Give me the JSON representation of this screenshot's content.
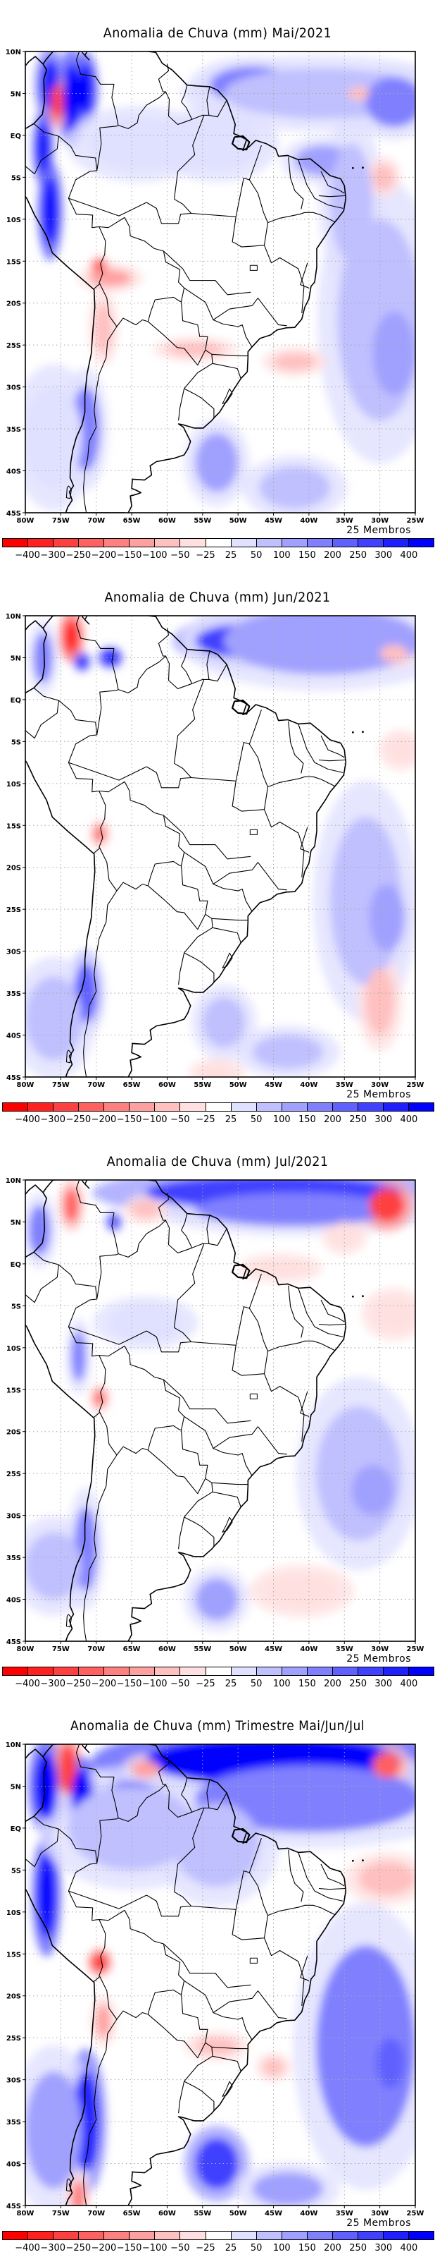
{
  "document": {
    "type": "precipitation-anomaly-maps",
    "region": "South America"
  },
  "axes": {
    "lat_labels": [
      "10N",
      "5N",
      "EQ",
      "5S",
      "10S",
      "15S",
      "20S",
      "25S",
      "30S",
      "35S",
      "40S",
      "45S"
    ],
    "lat_values": [
      10,
      5,
      0,
      -5,
      -10,
      -15,
      -20,
      -25,
      -30,
      -35,
      -40,
      -45
    ],
    "lon_labels": [
      "80W",
      "75W",
      "70W",
      "65W",
      "60W",
      "55W",
      "50W",
      "45W",
      "40W",
      "35W",
      "30W",
      "25W"
    ],
    "lon_values": [
      -80,
      -75,
      -70,
      -65,
      -60,
      -55,
      -50,
      -45,
      -40,
      -35,
      -30,
      -25
    ],
    "lat_range": [
      -45,
      10
    ],
    "lon_range": [
      -80,
      -25
    ]
  },
  "colorbar": {
    "labels": [
      "-400",
      "-300",
      "-250",
      "-200",
      "-150",
      "-100",
      "-50",
      "-25",
      "25",
      "50",
      "100",
      "150",
      "200",
      "250",
      "300",
      "400"
    ],
    "colors": [
      "#ff0000",
      "#ff2020",
      "#ff4040",
      "#ff6060",
      "#ff8080",
      "#ffa0a0",
      "#ffc0c0",
      "#ffe0e0",
      "#ffffff",
      "#e0e0ff",
      "#c0c0ff",
      "#a0a0ff",
      "#8080ff",
      "#6060ff",
      "#4040ff",
      "#2020ff",
      "#0000ff"
    ],
    "unit": "mm"
  },
  "panels": [
    {
      "title": "Anomalia de Chuva (mm) Mai/2021",
      "members_label": "25 Membros",
      "anomaly_features": [
        {
          "lon": -73.5,
          "lat": 4.5,
          "rx": 1.2,
          "ry": 4,
          "cls": 16
        },
        {
          "lon": -76.5,
          "lat": 6,
          "rx": 1.3,
          "ry": 3,
          "cls": 15
        },
        {
          "lon": -75.5,
          "lat": 4,
          "rx": 0.9,
          "ry": 2,
          "cls": 2
        },
        {
          "lon": -71.5,
          "lat": 5.5,
          "rx": 1,
          "ry": 3,
          "cls": 16
        },
        {
          "lon": -77.5,
          "lat": -1.5,
          "rx": 0.8,
          "ry": 3,
          "cls": 16
        },
        {
          "lon": -76.5,
          "lat": -9,
          "rx": 1,
          "ry": 4,
          "cls": 16
        },
        {
          "lon": -69.5,
          "lat": -16,
          "rx": 0.8,
          "ry": 0.8,
          "cls": 1
        },
        {
          "lon": -68,
          "lat": -17,
          "rx": 3,
          "ry": 1,
          "cls": 5
        },
        {
          "lon": -69,
          "lat": -23,
          "rx": 1.2,
          "ry": 3,
          "cls": 6
        },
        {
          "lon": -56,
          "lat": -25.5,
          "rx": 4,
          "ry": 0.8,
          "cls": 6
        },
        {
          "lon": -71.5,
          "lat": -35,
          "rx": 2,
          "ry": 5,
          "cls": 12
        },
        {
          "lon": -76,
          "lat": -36,
          "rx": 4,
          "ry": 6,
          "cls": 9
        },
        {
          "lon": -48,
          "lat": 6,
          "rx": 6,
          "ry": 2.2,
          "cls": 12
        },
        {
          "lon": -38,
          "lat": 5,
          "rx": 14,
          "ry": 3,
          "cls": 10
        },
        {
          "lon": -28,
          "lat": 4,
          "rx": 4,
          "ry": 3,
          "cls": 12
        },
        {
          "lon": -33,
          "lat": 5,
          "rx": 1.5,
          "ry": 0.8,
          "cls": 6
        },
        {
          "lon": -38,
          "lat": -3,
          "rx": 4,
          "ry": 1.8,
          "cls": 11
        },
        {
          "lon": -34,
          "lat": -8,
          "rx": 3,
          "ry": 7,
          "cls": 10
        },
        {
          "lon": -30,
          "lat": -22,
          "rx": 6,
          "ry": 12,
          "cls": 10
        },
        {
          "lon": -28,
          "lat": -26,
          "rx": 3,
          "ry": 5,
          "cls": 11
        },
        {
          "lon": -53,
          "lat": -39,
          "rx": 3,
          "ry": 3.5,
          "cls": 11
        },
        {
          "lon": -42,
          "lat": -42,
          "rx": 5,
          "ry": 2.5,
          "cls": 10
        },
        {
          "lon": -64,
          "lat": -1,
          "rx": 7,
          "ry": 3,
          "cls": 9
        },
        {
          "lon": -53,
          "lat": -1,
          "rx": 6,
          "ry": 3,
          "cls": 9
        },
        {
          "lon": -42,
          "lat": -27,
          "rx": 3,
          "ry": 1,
          "cls": 6
        },
        {
          "lon": -29.5,
          "lat": -5,
          "rx": 1.5,
          "ry": 1.5,
          "cls": 6
        }
      ]
    },
    {
      "title": "Anomalia de Chuva (mm) Jun/2021",
      "members_label": "25 Membros",
      "anomaly_features": [
        {
          "lon": -73.5,
          "lat": 7.5,
          "rx": 1,
          "ry": 2,
          "cls": 1
        },
        {
          "lon": -77.5,
          "lat": 5,
          "rx": 1.3,
          "ry": 3,
          "cls": 12
        },
        {
          "lon": -68,
          "lat": 5,
          "rx": 1,
          "ry": 0.7,
          "cls": 16
        },
        {
          "lon": -72,
          "lat": 4.5,
          "rx": 0.6,
          "ry": 0.6,
          "cls": 16
        },
        {
          "lon": -49,
          "lat": 7,
          "rx": 7,
          "ry": 2,
          "cls": 14
        },
        {
          "lon": -38,
          "lat": 7,
          "rx": 14,
          "ry": 4,
          "cls": 11
        },
        {
          "lon": -28,
          "lat": 5.5,
          "rx": 2,
          "ry": 1,
          "cls": 6
        },
        {
          "lon": -69.5,
          "lat": -16,
          "rx": 0.7,
          "ry": 0.9,
          "cls": 3
        },
        {
          "lon": -71.5,
          "lat": -35,
          "rx": 1.6,
          "ry": 3.5,
          "cls": 13
        },
        {
          "lon": -76,
          "lat": -38,
          "rx": 4,
          "ry": 5,
          "cls": 10
        },
        {
          "lon": -32,
          "lat": -24,
          "rx": 5,
          "ry": 10,
          "cls": 10
        },
        {
          "lon": -29,
          "lat": -26,
          "rx": 2.5,
          "ry": 4,
          "cls": 11
        },
        {
          "lon": -30,
          "lat": -36,
          "rx": 2,
          "ry": 4,
          "cls": 6
        },
        {
          "lon": -52,
          "lat": -38.5,
          "rx": 3,
          "ry": 3,
          "cls": 10
        },
        {
          "lon": -43,
          "lat": -42,
          "rx": 5,
          "ry": 2,
          "cls": 10
        },
        {
          "lon": -27,
          "lat": -6,
          "rx": 2,
          "ry": 1.5,
          "cls": 7
        },
        {
          "lon": -53,
          "lat": -44.5,
          "rx": 2.5,
          "ry": 1,
          "cls": 7
        }
      ]
    },
    {
      "title": "Anomalia de Chuva (mm) Jul/2021",
      "members_label": "25 Membros",
      "anomaly_features": [
        {
          "lon": -45,
          "lat": 8.5,
          "rx": 18,
          "ry": 2,
          "cls": 14
        },
        {
          "lon": -42,
          "lat": 6.5,
          "rx": 14,
          "ry": 2,
          "cls": 12
        },
        {
          "lon": -29,
          "lat": 7,
          "rx": 2.5,
          "ry": 2,
          "cls": 2
        },
        {
          "lon": -73.5,
          "lat": 7,
          "rx": 1,
          "ry": 2,
          "cls": 3
        },
        {
          "lon": -78,
          "lat": 4,
          "rx": 1.5,
          "ry": 3,
          "cls": 12
        },
        {
          "lon": -67.5,
          "lat": 5,
          "rx": 0.6,
          "ry": 0.6,
          "cls": 15
        },
        {
          "lon": -63,
          "lat": 6.5,
          "rx": 2,
          "ry": 1,
          "cls": 6
        },
        {
          "lon": -35,
          "lat": 3.5,
          "rx": 2,
          "ry": 1.5,
          "cls": 7
        },
        {
          "lon": -44,
          "lat": -0.5,
          "rx": 4,
          "ry": 1,
          "cls": 7
        },
        {
          "lon": -28,
          "lat": -6,
          "rx": 3,
          "ry": 2,
          "cls": 7
        },
        {
          "lon": -69.5,
          "lat": -16,
          "rx": 0.7,
          "ry": 0.9,
          "cls": 3
        },
        {
          "lon": -72.5,
          "lat": -11,
          "rx": 1,
          "ry": 3,
          "cls": 12
        },
        {
          "lon": -71.5,
          "lat": -34,
          "rx": 1.6,
          "ry": 5,
          "cls": 12
        },
        {
          "lon": -76,
          "lat": -36,
          "rx": 4,
          "ry": 4,
          "cls": 10
        },
        {
          "lon": -33,
          "lat": -25,
          "rx": 6,
          "ry": 8,
          "cls": 10
        },
        {
          "lon": -31,
          "lat": -27,
          "rx": 3,
          "ry": 3,
          "cls": 11
        },
        {
          "lon": -53,
          "lat": -40,
          "rx": 3,
          "ry": 2.5,
          "cls": 11
        },
        {
          "lon": -41,
          "lat": -39,
          "rx": 5,
          "ry": 2,
          "cls": 7
        },
        {
          "lon": -63,
          "lat": -7,
          "rx": 5,
          "ry": 2,
          "cls": 9
        }
      ]
    },
    {
      "title": "Anomalia de Chuva (mm) Trimestre Mai/Jun/Jul",
      "members_label": "25 Membros",
      "anomaly_features": [
        {
          "lon": -45,
          "lat": 8,
          "rx": 18,
          "ry": 2.8,
          "cls": 16
        },
        {
          "lon": -40,
          "lat": 3.5,
          "rx": 16,
          "ry": 4,
          "cls": 12
        },
        {
          "lon": -29,
          "lat": 7.5,
          "rx": 2,
          "ry": 1.5,
          "cls": 3
        },
        {
          "lon": -77,
          "lat": 5,
          "rx": 1.6,
          "ry": 4,
          "cls": 16
        },
        {
          "lon": -74,
          "lat": 7,
          "rx": 1.2,
          "ry": 3,
          "cls": 2
        },
        {
          "lon": -72,
          "lat": 4,
          "rx": 1.5,
          "ry": 3,
          "cls": 16
        },
        {
          "lon": -65,
          "lat": 4.5,
          "rx": 3,
          "ry": 1,
          "cls": 15
        },
        {
          "lon": -63,
          "lat": 7,
          "rx": 2,
          "ry": 1,
          "cls": 5
        },
        {
          "lon": -77,
          "lat": -8,
          "rx": 1.2,
          "ry": 5,
          "cls": 16
        },
        {
          "lon": -69.5,
          "lat": -16,
          "rx": 0.9,
          "ry": 0.9,
          "cls": 1
        },
        {
          "lon": -69,
          "lat": -23,
          "rx": 1,
          "ry": 2,
          "cls": 5
        },
        {
          "lon": -65,
          "lat": 0,
          "rx": 9,
          "ry": 5,
          "cls": 10
        },
        {
          "lon": -53,
          "lat": -2,
          "rx": 6,
          "ry": 5,
          "cls": 10
        },
        {
          "lon": -71.5,
          "lat": -35,
          "rx": 1.8,
          "ry": 6,
          "cls": 15
        },
        {
          "lon": -76,
          "lat": -36,
          "rx": 4,
          "ry": 7,
          "cls": 11
        },
        {
          "lon": -53,
          "lat": -40,
          "rx": 3,
          "ry": 3,
          "cls": 14
        },
        {
          "lon": -32,
          "lat": -26,
          "rx": 7,
          "ry": 12,
          "cls": 12
        },
        {
          "lon": -28.5,
          "lat": -28,
          "rx": 2,
          "ry": 3,
          "cls": 13
        },
        {
          "lon": -29,
          "lat": -6,
          "rx": 4,
          "ry": 2,
          "cls": 6
        },
        {
          "lon": -43,
          "lat": -43,
          "rx": 5,
          "ry": 2,
          "cls": 11
        },
        {
          "lon": -45,
          "lat": -28.5,
          "rx": 1.5,
          "ry": 1,
          "cls": 6
        },
        {
          "lon": -53,
          "lat": -26,
          "rx": 3,
          "ry": 1,
          "cls": 6
        },
        {
          "lon": -72.5,
          "lat": -44,
          "rx": 1,
          "ry": 2,
          "cls": 4
        }
      ]
    }
  ]
}
